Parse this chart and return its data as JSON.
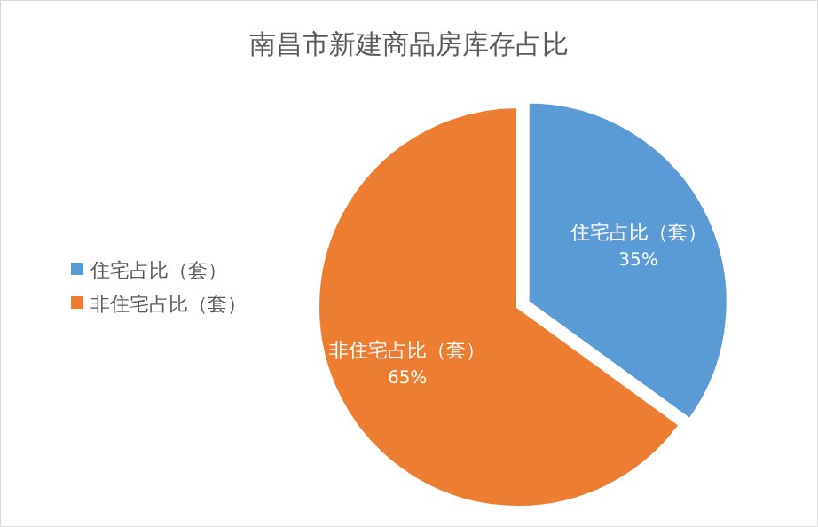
{
  "chart_data": {
    "type": "pie",
    "title": "南昌市新建商品房库存占比",
    "categories": [
      "住宅占比（套）",
      "非住宅占比（套）"
    ],
    "values": [
      35,
      65
    ],
    "colors": [
      "#5b9bd5",
      "#ed7d31"
    ],
    "value_labels": [
      "35%",
      "65%"
    ],
    "legend": "left"
  }
}
